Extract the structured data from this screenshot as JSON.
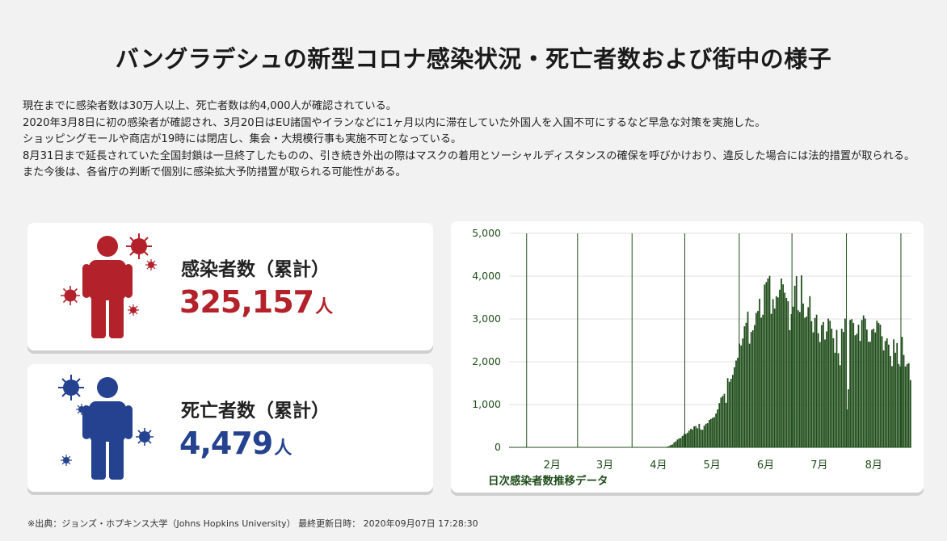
{
  "title": "バングラデシュの新型コロナ感染状況・死亡者数および街中の様子",
  "description": [
    "現在までに感染者数は30万人以上、死亡者数は約4,000人が確認されている。",
    "2020年3月8日に初の感染者が確認され、3月20日はEU諸国やイランなどに1ヶ月以内に滞在していた外国人を入国不可にするなど早急な対策を実施した。",
    "ショッピングモールや商店が19時には閉店し、集会・大規模行事も実施不可となっている。",
    "8月31日まで延長されていた全国封鎖は一旦終了したものの、引き続き外出の際はマスクの着用とソーシャルディスタンスの確保を呼びかけおり、違反した場合には法的措置が取られる。",
    "また今後は、各省庁の判断で個別に感染拡大予防措置が取られる可能性がある。"
  ],
  "infected": {
    "label": "感染者数（累計）",
    "value": "325,157",
    "unit": "人",
    "color": "#b3222a",
    "icons": [
      "person-icon",
      "virus-icon"
    ]
  },
  "deaths": {
    "label": "死亡者数（累計）",
    "value": "4,479",
    "unit": "人",
    "color": "#24428f",
    "icons": [
      "person-icon",
      "virus-icon"
    ]
  },
  "chart_data": {
    "type": "bar",
    "caption": "日次感染者数推移データ",
    "x_start": "2020-01-22",
    "x_end": "2020-09-06",
    "xticks": [
      "2月",
      "3月",
      "4月",
      "5月",
      "6月",
      "7月",
      "8月"
    ],
    "ylim": [
      0,
      5000
    ],
    "yticks": [
      "0",
      "1,000",
      "2,000",
      "3,000",
      "4,000",
      "5,000"
    ],
    "bar_color": "#1f4d1a",
    "daily_new_cases": [
      0,
      0,
      0,
      0,
      0,
      0,
      0,
      0,
      0,
      0,
      0,
      0,
      0,
      0,
      0,
      0,
      0,
      0,
      0,
      0,
      0,
      0,
      0,
      0,
      0,
      0,
      0,
      0,
      0,
      0,
      0,
      0,
      0,
      0,
      0,
      0,
      0,
      0,
      0,
      0,
      0,
      0,
      0,
      0,
      0,
      0,
      3,
      0,
      0,
      0,
      0,
      0,
      0,
      0,
      0,
      0,
      0,
      0,
      0,
      0,
      0,
      0,
      0,
      0,
      0,
      0,
      0,
      0,
      0,
      0,
      0,
      0,
      0,
      0,
      0,
      0,
      0,
      0,
      0,
      0,
      0,
      0,
      0,
      0,
      0,
      0,
      0,
      0,
      0,
      0,
      0,
      0,
      5,
      9,
      18,
      29,
      54,
      66,
      112,
      139,
      182,
      209,
      219,
      266,
      306,
      312,
      341,
      390,
      434,
      414,
      492,
      497,
      445,
      549,
      418,
      409,
      505,
      552,
      564,
      641,
      665,
      688,
      706,
      790,
      887,
      1034,
      1162,
      1202,
      1251,
      1041,
      1617,
      1532,
      1602,
      1694,
      1873,
      2029,
      2091,
      2423,
      2381,
      2545,
      2828,
      2911,
      3171,
      2423,
      2695,
      2735,
      2856,
      3141,
      3187,
      3471,
      3031,
      3099,
      3803,
      3862,
      3946,
      4008,
      3119,
      3462,
      3243,
      3531,
      3504,
      3682,
      3946,
      3809,
      3614,
      3489,
      3413,
      2738,
      3114,
      3288,
      3775,
      3999,
      3201,
      3163,
      4019,
      3360,
      3027,
      3057,
      3275,
      3533,
      2949,
      2686,
      3020,
      3099,
      2666,
      2459,
      2856,
      2928,
      2520,
      2709,
      3009,
      2960,
      2772,
      2548,
      2210,
      2744,
      2199,
      1918,
      2772,
      2695,
      3009,
      887,
      1356,
      2977,
      2996,
      2907,
      2617,
      2654,
      2865,
      2487,
      2977,
      3083,
      3009,
      2754,
      2467,
      2468,
      2747,
      2774,
      2685,
      2959,
      2907,
      2866,
      2597,
      2265,
      2485,
      2545,
      2401,
      2131,
      1897,
      2523,
      2211,
      2436,
      1950,
      1892,
      2582,
      2158,
      1892,
      1950,
      1966,
      1571
    ]
  },
  "source": "※出典：ジョンズ・ホプキンス大学（Johns Hopkins University） 最終更新日時： 2020年09月07日 17:28:30"
}
